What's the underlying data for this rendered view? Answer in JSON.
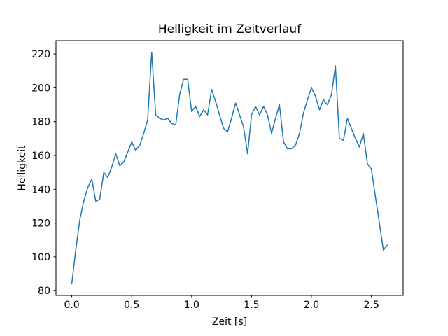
{
  "figure": {
    "background_color": "#ffffff",
    "text_color": "#000000",
    "spine_color": "#000000"
  },
  "chart_data": {
    "type": "line",
    "title": "Helligkeit im Zeitverlauf",
    "xlabel": "Zeit [s]",
    "ylabel": "Helligkeit",
    "grid": false,
    "legend": null,
    "line_color": "#1f77b4",
    "line_width": 1.5,
    "xlim": [
      -0.132,
      2.765
    ],
    "ylim": [
      77.2,
      227.9
    ],
    "x_ticks": [
      0.0,
      0.5,
      1.0,
      1.5,
      2.0,
      2.5
    ],
    "x_tick_labels": [
      "0.0",
      "0.5",
      "1.0",
      "1.5",
      "2.0",
      "2.5"
    ],
    "y_ticks": [
      80,
      100,
      120,
      140,
      160,
      180,
      200,
      220
    ],
    "y_tick_labels": [
      "80",
      "100",
      "120",
      "140",
      "160",
      "180",
      "200",
      "220"
    ],
    "series": [
      {
        "name": "Helligkeit",
        "x": [
          0.0,
          0.033,
          0.067,
          0.1,
          0.133,
          0.167,
          0.2,
          0.233,
          0.267,
          0.3,
          0.333,
          0.367,
          0.4,
          0.433,
          0.467,
          0.5,
          0.533,
          0.567,
          0.6,
          0.633,
          0.667,
          0.7,
          0.733,
          0.767,
          0.8,
          0.833,
          0.867,
          0.9,
          0.933,
          0.967,
          1.0,
          1.033,
          1.067,
          1.1,
          1.133,
          1.167,
          1.2,
          1.233,
          1.267,
          1.3,
          1.333,
          1.367,
          1.4,
          1.433,
          1.467,
          1.5,
          1.533,
          1.567,
          1.6,
          1.633,
          1.667,
          1.7,
          1.733,
          1.767,
          1.8,
          1.833,
          1.867,
          1.9,
          1.933,
          1.967,
          2.0,
          2.033,
          2.067,
          2.1,
          2.133,
          2.167,
          2.2,
          2.233,
          2.267,
          2.3,
          2.333,
          2.367,
          2.4,
          2.433,
          2.467,
          2.5,
          2.533,
          2.567,
          2.6,
          2.633
        ],
        "y": [
          84,
          104,
          122,
          133,
          141,
          146,
          133,
          134,
          150,
          147,
          153,
          161,
          154,
          156,
          162,
          168,
          163,
          166,
          173,
          181,
          221,
          184,
          182,
          181,
          182,
          179,
          178,
          196,
          205,
          205,
          186,
          189,
          183,
          187,
          184,
          199,
          192,
          184,
          176,
          174,
          182,
          191,
          184,
          177,
          161,
          184,
          189,
          184,
          189,
          184,
          173,
          182,
          190,
          168,
          164,
          164,
          166,
          173,
          185,
          193,
          200,
          195,
          187,
          193,
          190,
          196,
          213,
          170,
          169,
          182,
          176,
          170,
          165,
          173,
          155,
          152,
          136,
          120,
          104,
          107
        ]
      }
    ]
  }
}
